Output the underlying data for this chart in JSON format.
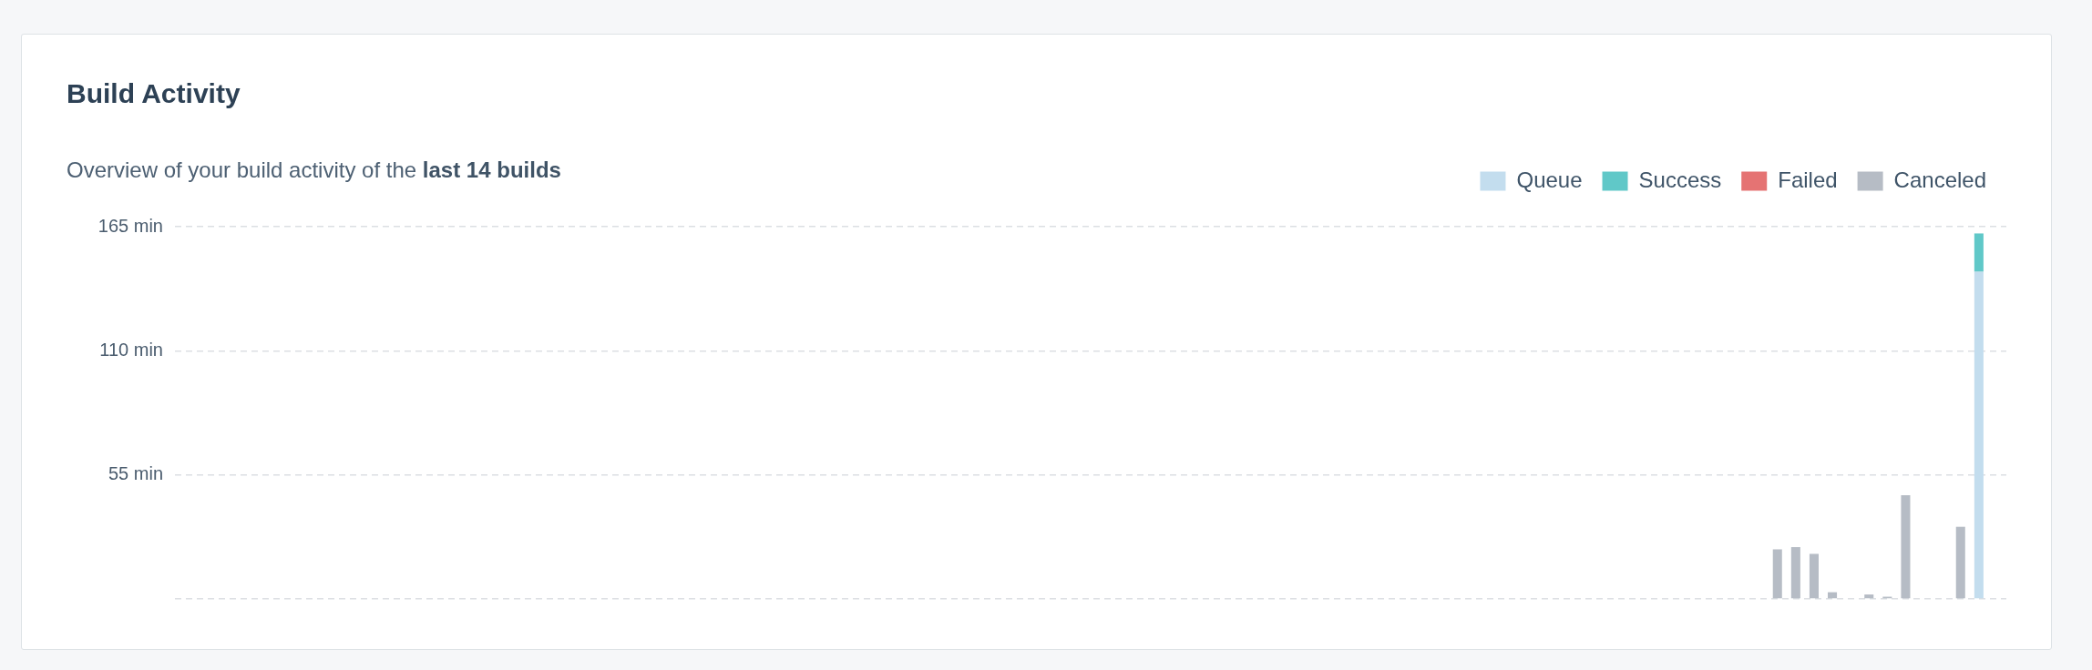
{
  "chart_data": {
    "type": "bar",
    "title": "Build Activity",
    "subtitle": "Overview of your build activity of the last 14 builds",
    "categories": [
      null,
      null,
      null,
      null,
      null,
      null,
      null,
      null,
      null,
      null,
      null,
      null,
      null,
      null,
      null,
      null,
      null,
      null,
      null,
      null,
      null,
      null,
      null,
      null,
      null,
      null,
      null,
      null,
      null,
      null,
      null,
      null,
      null,
      null,
      null,
      null,
      null,
      null,
      null,
      null,
      null,
      null,
      null,
      null,
      null,
      null,
      null,
      null,
      null,
      null,
      null,
      null,
      null,
      null,
      null,
      null,
      null,
      null,
      null,
      null,
      null,
      null,
      null,
      null,
      null,
      null,
      null,
      null,
      null,
      null,
      null,
      null,
      null,
      null,
      null,
      null,
      null,
      null,
      null,
      null,
      null,
      null,
      null,
      null,
      null,
      null,
      null,
      null,
      null,
      null,
      null,
      null,
      null,
      null,
      null,
      null,
      null,
      null,
      null,
      null
    ],
    "series": [
      {
        "name": "Queue",
        "color": "#c3ddee",
        "values": [
          null,
          null,
          null,
          null,
          null,
          null,
          null,
          null,
          null,
          null,
          null,
          null,
          null,
          null,
          null,
          null,
          null,
          null,
          null,
          null,
          null,
          null,
          null,
          null,
          null,
          null,
          null,
          null,
          null,
          null,
          null,
          null,
          null,
          null,
          null,
          null,
          null,
          null,
          null,
          null,
          null,
          null,
          null,
          null,
          null,
          null,
          null,
          null,
          null,
          null,
          null,
          null,
          null,
          null,
          null,
          null,
          null,
          null,
          null,
          null,
          null,
          null,
          null,
          null,
          null,
          null,
          null,
          null,
          null,
          null,
          null,
          null,
          null,
          null,
          null,
          null,
          null,
          null,
          null,
          null,
          null,
          null,
          null,
          null,
          null,
          null,
          null,
          null,
          null,
          null,
          null,
          null,
          null,
          null,
          null,
          null,
          null,
          null,
          145,
          null
        ]
      },
      {
        "name": "Success",
        "color": "#60c8c8",
        "values": [
          null,
          null,
          null,
          null,
          null,
          null,
          null,
          null,
          null,
          null,
          null,
          null,
          null,
          null,
          null,
          null,
          null,
          null,
          null,
          null,
          null,
          null,
          null,
          null,
          null,
          null,
          null,
          null,
          null,
          null,
          null,
          null,
          null,
          null,
          null,
          null,
          null,
          null,
          null,
          null,
          null,
          null,
          null,
          null,
          null,
          null,
          null,
          null,
          null,
          null,
          null,
          null,
          null,
          null,
          null,
          null,
          null,
          null,
          null,
          null,
          null,
          null,
          null,
          null,
          null,
          null,
          null,
          null,
          null,
          null,
          null,
          null,
          null,
          null,
          null,
          null,
          null,
          null,
          null,
          null,
          null,
          null,
          null,
          null,
          null,
          null,
          null,
          null,
          null,
          null,
          null,
          null,
          null,
          null,
          null,
          null,
          null,
          null,
          17,
          null
        ]
      },
      {
        "name": "Failed",
        "color": "#e57373",
        "values": [
          null,
          null,
          null,
          null,
          null,
          null,
          null,
          null,
          null,
          null,
          null,
          null,
          null,
          null,
          null,
          null,
          null,
          null,
          null,
          null,
          null,
          null,
          null,
          null,
          null,
          null,
          null,
          null,
          null,
          null,
          null,
          null,
          null,
          null,
          null,
          null,
          null,
          null,
          null,
          null,
          null,
          null,
          null,
          null,
          null,
          null,
          null,
          null,
          null,
          null,
          null,
          null,
          null,
          null,
          null,
          null,
          null,
          null,
          null,
          null,
          null,
          null,
          null,
          null,
          null,
          null,
          null,
          null,
          null,
          null,
          null,
          null,
          null,
          null,
          null,
          null,
          null,
          null,
          null,
          null,
          null,
          null,
          null,
          null,
          null,
          null,
          null,
          null,
          null,
          null,
          null,
          null,
          null,
          null,
          null,
          null,
          null,
          null,
          null,
          null
        ]
      },
      {
        "name": "Canceled",
        "color": "#b6bcc5",
        "values": [
          null,
          null,
          null,
          null,
          null,
          null,
          null,
          null,
          null,
          null,
          null,
          null,
          null,
          null,
          null,
          null,
          null,
          null,
          null,
          null,
          null,
          null,
          null,
          null,
          null,
          null,
          null,
          null,
          null,
          null,
          null,
          null,
          null,
          null,
          null,
          null,
          null,
          null,
          null,
          null,
          null,
          null,
          null,
          null,
          null,
          null,
          null,
          null,
          null,
          null,
          null,
          null,
          null,
          null,
          null,
          null,
          null,
          null,
          null,
          null,
          null,
          null,
          null,
          null,
          null,
          null,
          null,
          null,
          null,
          null,
          null,
          null,
          null,
          null,
          null,
          null,
          null,
          null,
          null,
          null,
          null,
          null,
          null,
          null,
          null,
          null,
          null,
          22,
          23,
          20,
          3,
          null,
          2,
          1,
          46,
          null,
          null,
          32,
          null,
          null
        ]
      }
    ],
    "stacked": true,
    "ylim": [
      0,
      165
    ],
    "yticks": [
      {
        "value": 0,
        "label": null
      },
      {
        "value": 55,
        "label": "55 min"
      },
      {
        "value": 110,
        "label": "110 min"
      },
      {
        "value": 165,
        "label": "165 min"
      }
    ],
    "grid": "y",
    "legend": "top right",
    "tick_labels": "y"
  }
}
